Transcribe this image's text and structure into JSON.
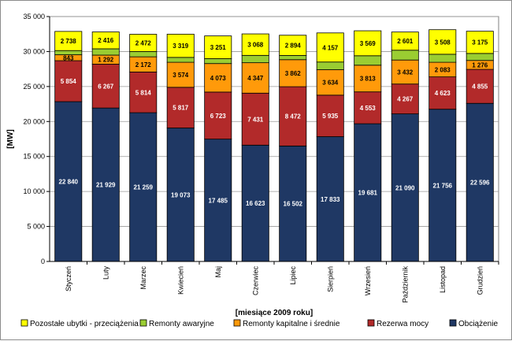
{
  "chart_data": {
    "type": "bar",
    "stacked": true,
    "title": "",
    "xlabel": "[miesiące 2009 roku]",
    "ylabel": "[MW]",
    "ylim": [
      0,
      35000
    ],
    "yticks": [
      0,
      5000,
      10000,
      15000,
      20000,
      25000,
      30000,
      35000
    ],
    "ytick_labels": [
      "0",
      "5 000",
      "10 000",
      "15 000",
      "20 000",
      "25 000",
      "30 000",
      "35 000"
    ],
    "grid": true,
    "legend_position": "bottom",
    "categories": [
      "Styczeń",
      "Luty",
      "Marzec",
      "Kwiecień",
      "Maj",
      "Czerwiec",
      "Lipiec",
      "Sierpień",
      "Wrzesień",
      "Październik",
      "Listopad",
      "Grudzień"
    ],
    "series": [
      {
        "name": "Obciążenie",
        "color": "#1f3864",
        "label_color": "#ffffff",
        "values": [
          22840,
          21929,
          21259,
          19073,
          17485,
          16623,
          16502,
          17833,
          19681,
          21090,
          21756,
          22596
        ],
        "labels": [
          "22 840",
          "21 929",
          "21 259",
          "19 073",
          "17 485",
          "16 623",
          "16 502",
          "17 833",
          "19 681",
          "21 090",
          "21 756",
          "22 596"
        ]
      },
      {
        "name": "Rezerwa mocy",
        "color": "#b22a2a",
        "label_color": "#ffffff",
        "values": [
          5854,
          6267,
          5814,
          5817,
          6723,
          7431,
          8472,
          5935,
          4553,
          4267,
          4623,
          4855
        ],
        "labels": [
          "5 854",
          "6 267",
          "5 814",
          "5 817",
          "6 723",
          "7 431",
          "8 472",
          "5 935",
          "4 553",
          "4 267",
          "4 623",
          "4 855"
        ]
      },
      {
        "name": "Remonty kapitalne i średnie",
        "color": "#ff9a0a",
        "label_color": "#000000",
        "values": [
          843,
          1292,
          2172,
          3574,
          4073,
          4347,
          3862,
          3634,
          3813,
          3432,
          2083,
          1276
        ],
        "labels": [
          "843",
          "1 292",
          "2 172",
          "3 574",
          "4 073",
          "4 347",
          "3 862",
          "3 634",
          "3 813",
          "3 432",
          "2 083",
          "1 276"
        ]
      },
      {
        "name": "Remonty awaryjne",
        "color": "#9acd32",
        "label_color": "#000000",
        "values": [
          600,
          900,
          750,
          700,
          700,
          1050,
          600,
          1100,
          1350,
          1400,
          1150,
          1000
        ],
        "labels": [
          "",
          "",
          "",
          "",
          "",
          "",
          "",
          "",
          "",
          "",
          "",
          ""
        ]
      },
      {
        "name": "Pozostałe ubytki - przeciążenia",
        "color": "#ffff00",
        "label_color": "#000000",
        "values": [
          2738,
          2416,
          2472,
          3319,
          3251,
          3068,
          2894,
          4157,
          3569,
          2601,
          3508,
          3175
        ],
        "labels": [
          "2 738",
          "2 416",
          "2 472",
          "3 319",
          "3 251",
          "3 068",
          "2 894",
          "4 157",
          "3 569",
          "2 601",
          "3 508",
          "3 175"
        ]
      }
    ],
    "legend_order": [
      4,
      3,
      2,
      1,
      0
    ]
  }
}
